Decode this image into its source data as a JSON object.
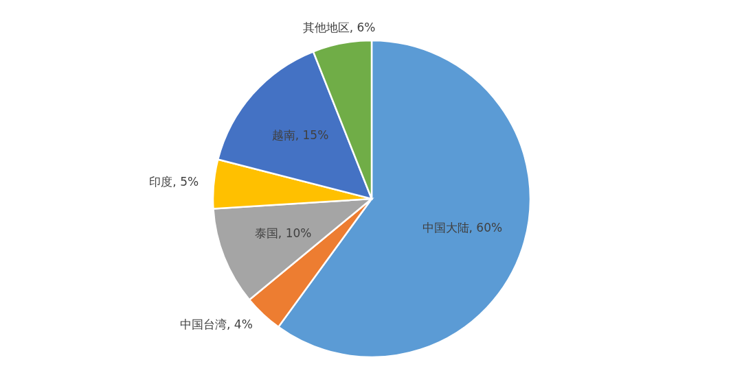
{
  "chart_data": {
    "type": "pie",
    "categories": [
      "中国大陆",
      "中国台湾",
      "泰国",
      "印度",
      "越南",
      "其他地区"
    ],
    "values": [
      60,
      4,
      10,
      5,
      15,
      6
    ],
    "value_labels": [
      "60%",
      "4%",
      "10%",
      "5%",
      "15%",
      "6%"
    ],
    "colors": [
      "#5b9bd5",
      "#ed7d31",
      "#a5a5a5",
      "#ffc000",
      "#4472c4",
      "#70ad47"
    ]
  }
}
